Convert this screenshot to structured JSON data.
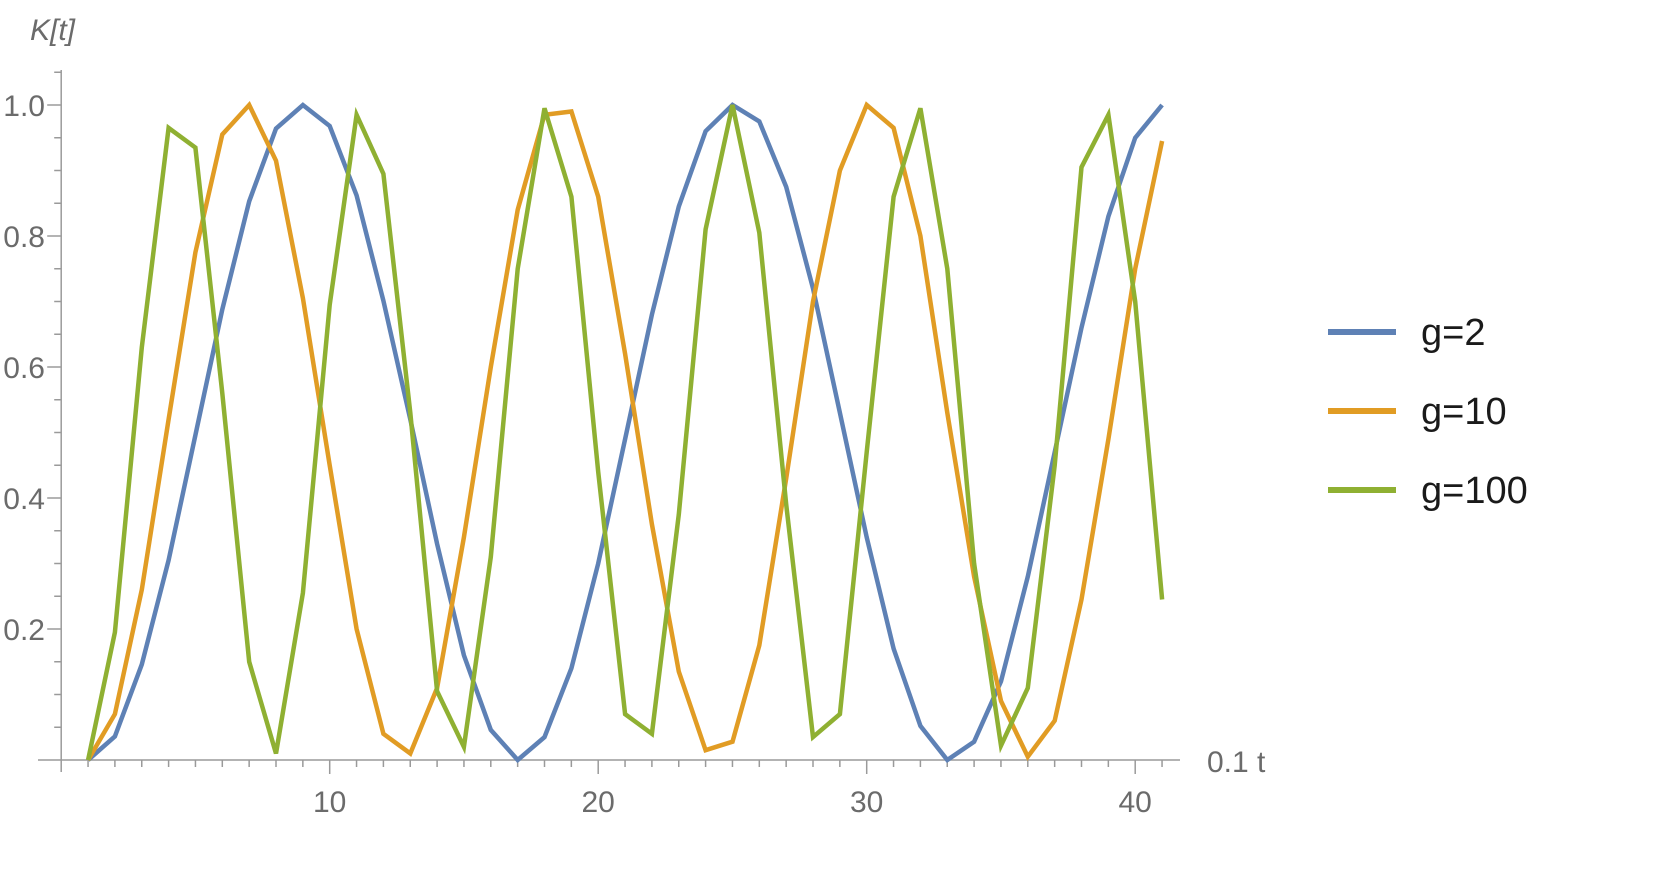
{
  "chart_data": {
    "type": "line",
    "xlabel": "0.1 t",
    "ylabel": "K[t]",
    "xlim": [
      0,
      42
    ],
    "ylim": [
      0,
      1.05
    ],
    "x_ticks": [
      10,
      20,
      30,
      40
    ],
    "y_ticks": [
      0.2,
      0.4,
      0.6,
      0.8,
      1.0
    ],
    "y_tick_labels": [
      "0.2",
      "0.4",
      "0.6",
      "0.8",
      "1.0"
    ],
    "grid": false,
    "legend": "right",
    "x": [
      1,
      2,
      3,
      4,
      5,
      6,
      7,
      8,
      9,
      10,
      11,
      12,
      13,
      14,
      15,
      16,
      17,
      18,
      19,
      20,
      21,
      22,
      23,
      24,
      25,
      26,
      27,
      28,
      29,
      30,
      31,
      32,
      33,
      34,
      35,
      36,
      37,
      38,
      39,
      40,
      41
    ],
    "series": [
      {
        "name": "g=2",
        "color": "#5e81b5",
        "values": [
          0.0,
          0.036,
          0.146,
          0.305,
          0.496,
          0.688,
          0.853,
          0.964,
          1.0,
          0.968,
          0.862,
          0.701,
          0.52,
          0.33,
          0.16,
          0.046,
          0.0,
          0.035,
          0.14,
          0.3,
          0.49,
          0.68,
          0.845,
          0.96,
          1.0,
          0.975,
          0.875,
          0.72,
          0.53,
          0.34,
          0.17,
          0.052,
          0.0,
          0.028,
          0.12,
          0.28,
          0.47,
          0.66,
          0.83,
          0.95,
          1.0
        ]
      },
      {
        "name": "g=10",
        "color": "#e19c24",
        "values": [
          0.0,
          0.07,
          0.26,
          0.52,
          0.775,
          0.955,
          1.0,
          0.915,
          0.705,
          0.45,
          0.2,
          0.04,
          0.01,
          0.11,
          0.34,
          0.6,
          0.84,
          0.985,
          0.99,
          0.86,
          0.62,
          0.36,
          0.135,
          0.015,
          0.028,
          0.175,
          0.43,
          0.7,
          0.9,
          1.0,
          0.965,
          0.8,
          0.53,
          0.28,
          0.09,
          0.005,
          0.06,
          0.245,
          0.49,
          0.75,
          0.945
        ]
      },
      {
        "name": "g=100",
        "color": "#8fb032",
        "values": [
          0.0,
          0.195,
          0.63,
          0.965,
          0.935,
          0.56,
          0.15,
          0.01,
          0.255,
          0.695,
          0.985,
          0.895,
          0.53,
          0.105,
          0.02,
          0.31,
          0.75,
          0.995,
          0.86,
          0.44,
          0.07,
          0.04,
          0.375,
          0.81,
          1.0,
          0.805,
          0.39,
          0.035,
          0.07,
          0.47,
          0.86,
          0.995,
          0.75,
          0.3,
          0.022,
          0.11,
          0.45,
          0.905,
          0.985,
          0.7,
          0.245
        ]
      }
    ]
  }
}
